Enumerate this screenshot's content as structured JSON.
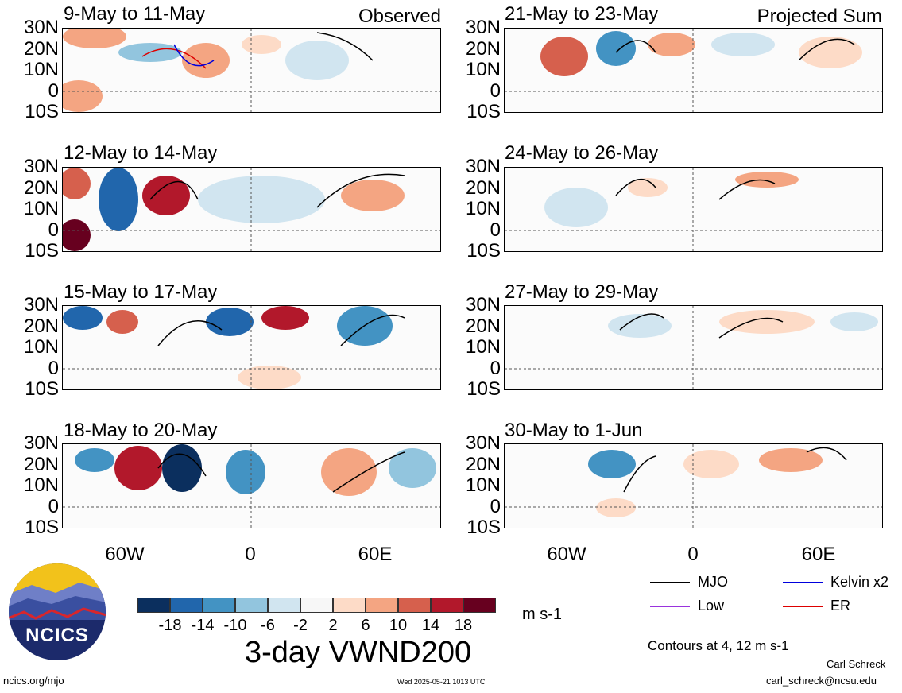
{
  "panels": [
    {
      "title": "9-May to 11-May",
      "tag": "Observed"
    },
    {
      "title": "21-May to 23-May",
      "tag": "Projected Sum"
    },
    {
      "title": "12-May to 14-May",
      "tag": ""
    },
    {
      "title": "24-May to 26-May",
      "tag": ""
    },
    {
      "title": "15-May to 17-May",
      "tag": ""
    },
    {
      "title": "27-May to 29-May",
      "tag": ""
    },
    {
      "title": "18-May to 20-May",
      "tag": ""
    },
    {
      "title": "30-May to 1-Jun",
      "tag": ""
    }
  ],
  "lat_labels": [
    "30N",
    "20N",
    "10N",
    "0",
    "10S"
  ],
  "lon_labels": [
    "60W",
    "0",
    "60E"
  ],
  "colorbar": {
    "colors": [
      "#0b2f5e",
      "#2166ac",
      "#4393c3",
      "#92c5de",
      "#d1e5f0",
      "#f7f7f7",
      "#fddbc7",
      "#f4a582",
      "#d6604d",
      "#b2182b",
      "#67001f"
    ],
    "ticks": [
      "-18",
      "-14",
      "-10",
      "-6",
      "-2",
      "2",
      "6",
      "10",
      "14",
      "18"
    ],
    "units": "m s-1"
  },
  "title": "3-day VWND200",
  "legend": [
    {
      "label": "MJO",
      "color": "#000000"
    },
    {
      "label": "Kelvin x2",
      "color": "#0000dd"
    },
    {
      "label": "Low",
      "color": "#9933dd"
    },
    {
      "label": "ER",
      "color": "#dd0000"
    }
  ],
  "contours_note": "Contours at 4, 12 m s-1",
  "logo_text": "NCICS",
  "author": "Carl Schreck",
  "email": "carl_schreck@ncsu.edu",
  "site": "ncics.org/mjo",
  "timestamp": "Wed 2025-05-21 1013 UTC"
}
